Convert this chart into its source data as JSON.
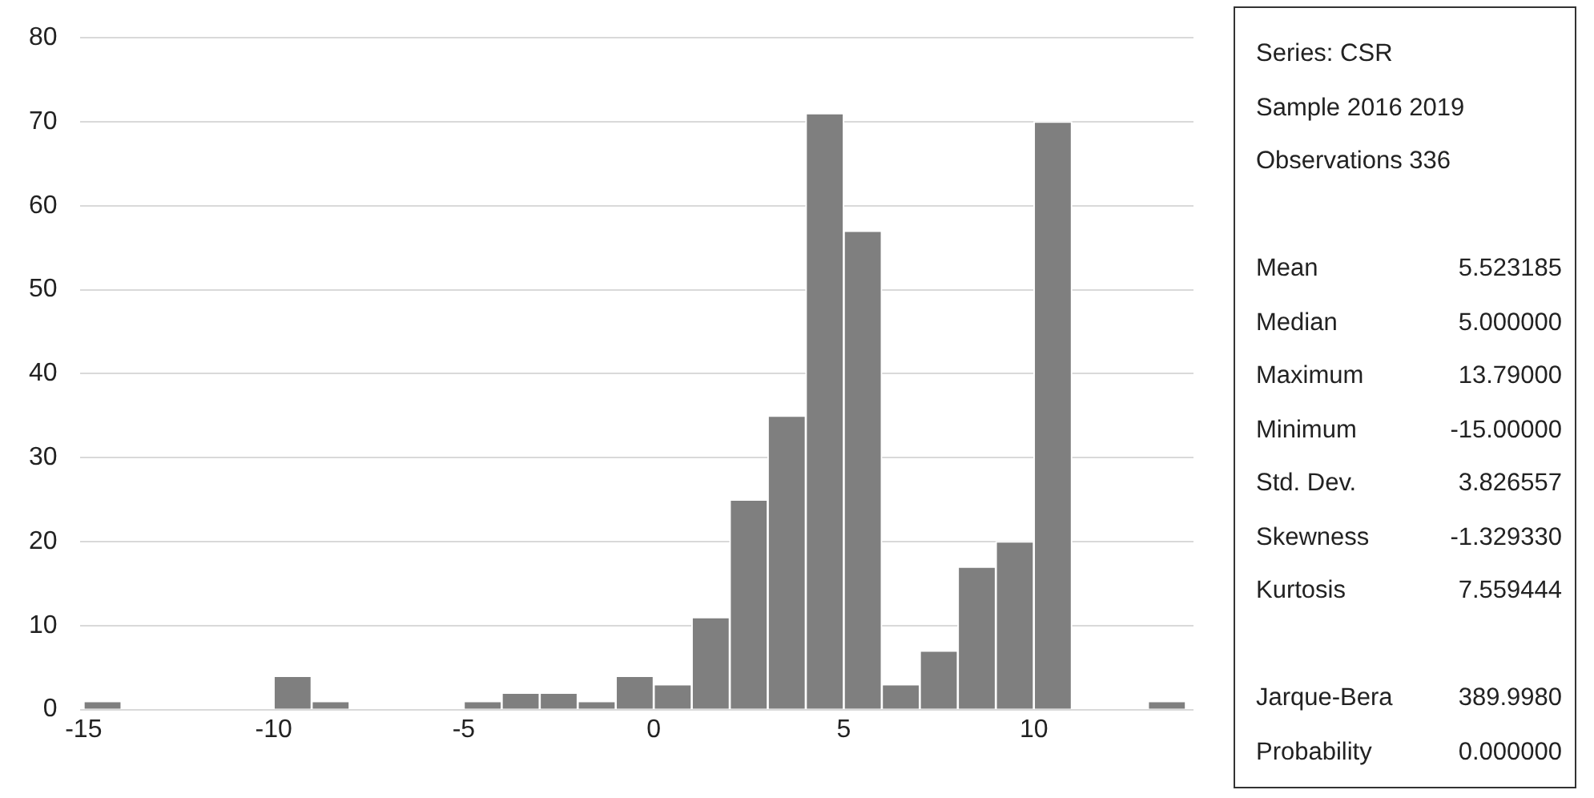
{
  "chart_data": {
    "type": "histogram",
    "bins": [
      -15,
      -14,
      -13,
      -12,
      -11,
      -10,
      -9,
      -8,
      -7,
      -6,
      -5,
      -4,
      -3,
      -2,
      -1,
      0,
      1,
      2,
      3,
      4,
      5,
      6,
      7,
      8,
      9,
      10,
      11,
      12,
      13,
      14
    ],
    "values": [
      1,
      0,
      0,
      0,
      0,
      4,
      1,
      0,
      0,
      0,
      1,
      2,
      2,
      1,
      4,
      3,
      11,
      25,
      35,
      71,
      57,
      3,
      7,
      17,
      20,
      70,
      0,
      0,
      1
    ],
    "color": "#7f7f7f",
    "xlim": [
      -15.1,
      14.2
    ],
    "xticks": [
      -15,
      -10,
      -5,
      0,
      5,
      10
    ],
    "ylim": [
      0,
      80
    ],
    "yticks": [
      0,
      10,
      20,
      30,
      40,
      50,
      60,
      70,
      80
    ],
    "grid": "y",
    "legend": false,
    "annotations": [
      "Series: CSR",
      "Sample 2016 2019",
      "Observations 336",
      "Mean 5.523185",
      "Median 5.000000",
      "Maximum 13.79000",
      "Minimum -15.00000",
      "Std. Dev. 3.826557",
      "Skewness -1.329330",
      "Kurtosis 7.559444",
      "Jarque-Bera 389.9980",
      "Probability 0.000000"
    ]
  }
}
